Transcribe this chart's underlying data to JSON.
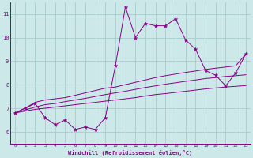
{
  "xlabel": "Windchill (Refroidissement éolien,°C)",
  "background_color": "#cce8e8",
  "grid_color": "#aacccc",
  "line_color": "#880088",
  "xlim": [
    -0.5,
    23.5
  ],
  "ylim": [
    5.5,
    11.5
  ],
  "xticks": [
    0,
    1,
    2,
    3,
    4,
    5,
    6,
    7,
    8,
    9,
    10,
    11,
    12,
    13,
    14,
    15,
    16,
    17,
    18,
    19,
    20,
    21,
    22,
    23
  ],
  "yticks": [
    6,
    7,
    8,
    9,
    10,
    11
  ],
  "x_data": [
    0,
    1,
    2,
    3,
    4,
    5,
    6,
    7,
    8,
    9,
    10,
    11,
    12,
    13,
    14,
    15,
    16,
    17,
    18,
    19,
    20,
    21,
    22,
    23
  ],
  "main_line": [
    6.8,
    7.0,
    7.2,
    6.6,
    6.3,
    6.5,
    6.1,
    6.2,
    6.1,
    6.6,
    8.8,
    11.3,
    10.0,
    10.6,
    10.5,
    10.5,
    10.8,
    9.9,
    9.5,
    8.6,
    8.4,
    7.95,
    8.5,
    9.3
  ],
  "upper_line": [
    6.8,
    7.0,
    7.25,
    7.35,
    7.4,
    7.45,
    7.55,
    7.65,
    7.75,
    7.85,
    7.9,
    8.0,
    8.1,
    8.2,
    8.3,
    8.38,
    8.45,
    8.52,
    8.58,
    8.65,
    8.7,
    8.75,
    8.8,
    9.3
  ],
  "middle_line": [
    6.8,
    6.92,
    7.05,
    7.15,
    7.2,
    7.28,
    7.35,
    7.42,
    7.5,
    7.58,
    7.65,
    7.72,
    7.8,
    7.88,
    7.95,
    8.02,
    8.08,
    8.14,
    8.2,
    8.26,
    8.3,
    8.35,
    8.38,
    8.42
  ],
  "lower_line": [
    6.8,
    6.88,
    6.95,
    7.0,
    7.05,
    7.1,
    7.15,
    7.2,
    7.25,
    7.3,
    7.35,
    7.4,
    7.45,
    7.52,
    7.58,
    7.62,
    7.67,
    7.72,
    7.77,
    7.82,
    7.86,
    7.9,
    7.93,
    7.96
  ]
}
